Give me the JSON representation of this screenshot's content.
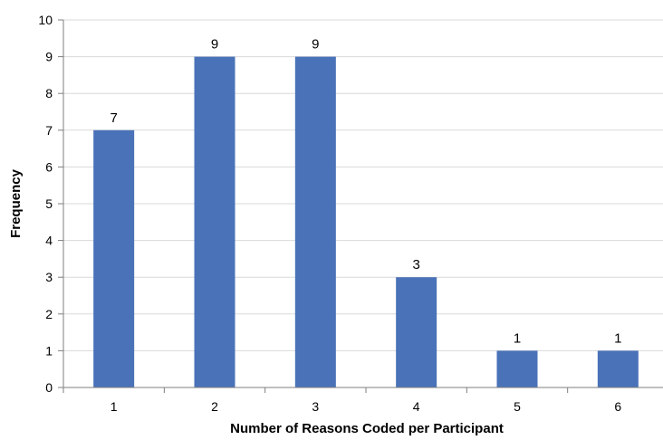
{
  "chart_data": {
    "type": "bar",
    "categories": [
      "1",
      "2",
      "3",
      "4",
      "5",
      "6"
    ],
    "values": [
      7,
      9,
      9,
      3,
      1,
      1
    ],
    "data_labels": [
      "7",
      "9",
      "9",
      "3",
      "1",
      "1"
    ],
    "xlabel": "Number of Reasons Coded per Participant",
    "ylabel": "Frequency",
    "ylim": [
      0,
      10
    ],
    "yticks": [
      "0",
      "1",
      "2",
      "3",
      "4",
      "5",
      "6",
      "7",
      "8",
      "9",
      "10"
    ],
    "grid": true,
    "legend": "none",
    "bar_color": "#4a72b8"
  }
}
